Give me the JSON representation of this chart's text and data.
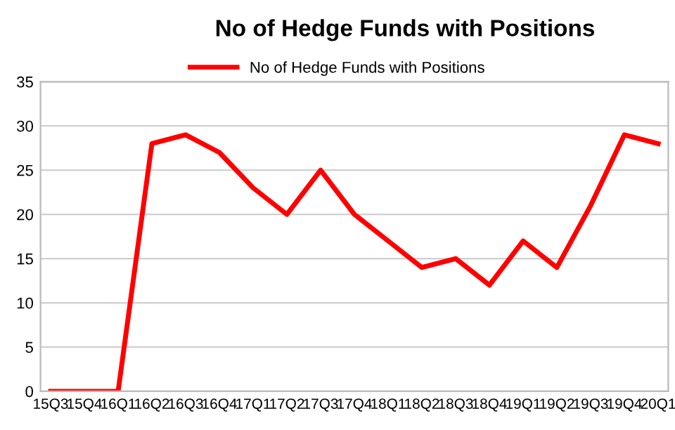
{
  "chart_data": {
    "type": "line",
    "title": "No of Hedge Funds with Positions",
    "categories": [
      "15Q3",
      "15Q4",
      "16Q1",
      "16Q2",
      "16Q3",
      "16Q4",
      "17Q1",
      "17Q2",
      "17Q3",
      "17Q4",
      "18Q1",
      "18Q2",
      "18Q3",
      "18Q4",
      "19Q1",
      "19Q2",
      "19Q3",
      "19Q4",
      "20Q1"
    ],
    "series": [
      {
        "name": "No of Hedge Funds with Positions",
        "color": "#ff0000",
        "values": [
          0,
          0,
          0,
          28,
          29,
          27,
          23,
          20,
          25,
          20,
          17,
          14,
          15,
          12,
          17,
          14,
          21,
          29,
          28
        ]
      }
    ],
    "ylim": [
      0,
      35
    ],
    "yticks": [
      0,
      5,
      10,
      15,
      20,
      25,
      30,
      35
    ],
    "grid": "y",
    "legend": "top",
    "marker": "none",
    "line_style": "solid"
  }
}
